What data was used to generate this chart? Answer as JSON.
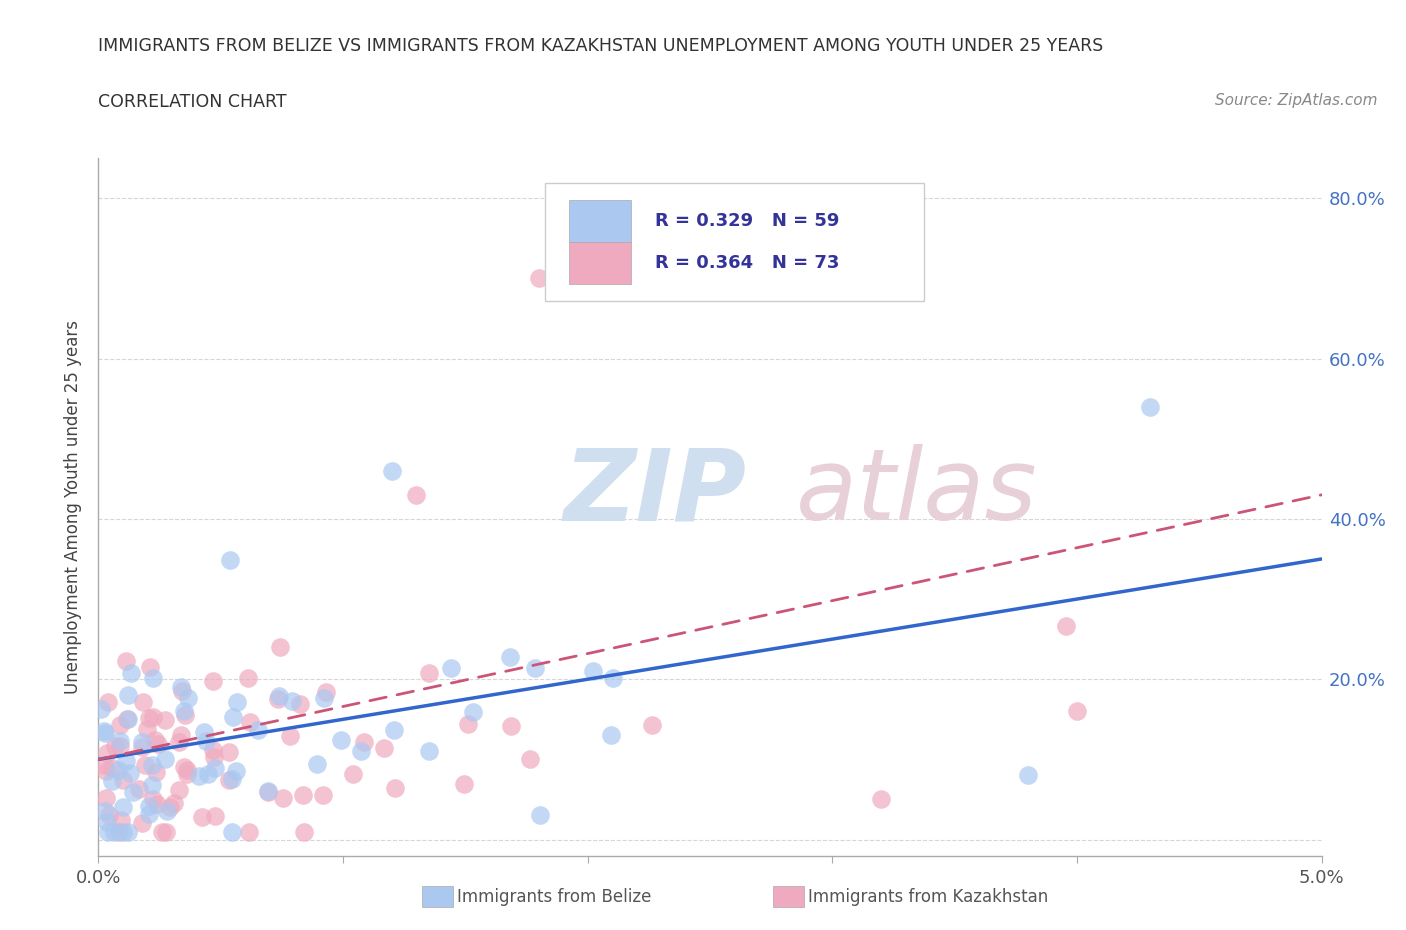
{
  "title_line1": "IMMIGRANTS FROM BELIZE VS IMMIGRANTS FROM KAZAKHSTAN UNEMPLOYMENT AMONG YOUTH UNDER 25 YEARS",
  "title_line2": "CORRELATION CHART",
  "source": "Source: ZipAtlas.com",
  "ylabel": "Unemployment Among Youth under 25 years",
  "xlim": [
    0.0,
    0.05
  ],
  "ylim": [
    -0.02,
    0.85
  ],
  "xticks": [
    0.0,
    0.01,
    0.02,
    0.03,
    0.04,
    0.05
  ],
  "xtick_labels": [
    "0.0%",
    "",
    "",
    "",
    "",
    "5.0%"
  ],
  "yticks": [
    0.0,
    0.2,
    0.4,
    0.6,
    0.8
  ],
  "ytick_labels": [
    "",
    "20.0%",
    "40.0%",
    "60.0%",
    "80.0%"
  ],
  "belize_color": "#aac8f0",
  "kazakhstan_color": "#f0aac0",
  "belize_trend_color": "#3366cc",
  "kazakhstan_trend_color": "#cc5577",
  "belize_R": 0.329,
  "belize_N": 59,
  "kazakhstan_R": 0.364,
  "kazakhstan_N": 73,
  "watermark_zip": "ZIP",
  "watermark_atlas": "atlas",
  "background_color": "#ffffff",
  "grid_color": "#cccccc",
  "ytick_color": "#4472c4",
  "xtick_color": "#555555",
  "belize_trend_y0": 0.1,
  "belize_trend_y1": 0.35,
  "kazakhstan_trend_y0": 0.1,
  "kazakhstan_trend_y1": 0.43
}
